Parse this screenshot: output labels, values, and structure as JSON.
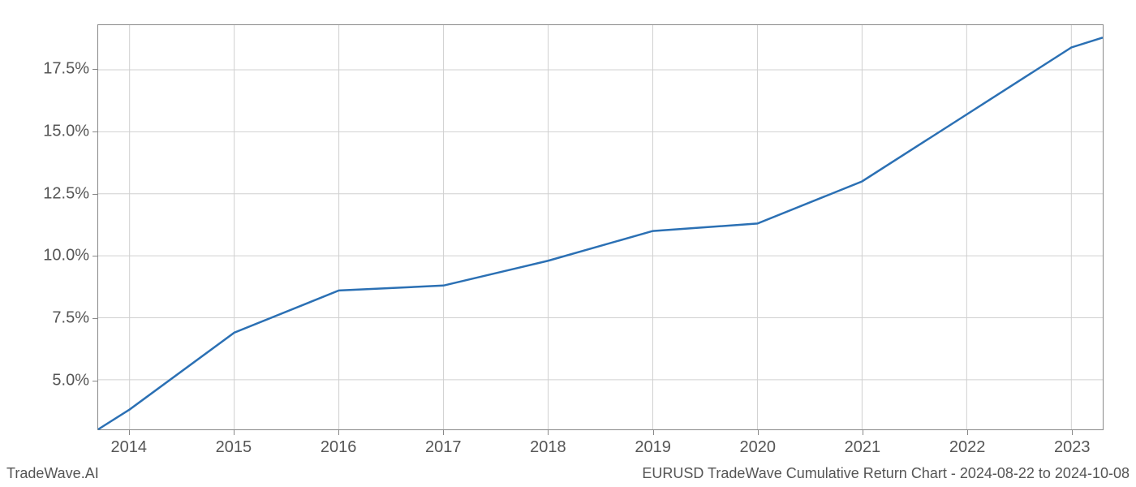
{
  "chart": {
    "type": "line",
    "x_values": [
      2013.7,
      2014,
      2015,
      2016,
      2017,
      2018,
      2019,
      2020,
      2021,
      2022,
      2023,
      2023.3
    ],
    "y_values": [
      3.0,
      3.8,
      6.9,
      8.6,
      8.8,
      9.8,
      11.0,
      11.3,
      13.0,
      15.7,
      18.4,
      18.8
    ],
    "x_ticks": [
      2014,
      2015,
      2016,
      2017,
      2018,
      2019,
      2020,
      2021,
      2022,
      2023
    ],
    "x_tick_labels": [
      "2014",
      "2015",
      "2016",
      "2017",
      "2018",
      "2019",
      "2020",
      "2021",
      "2022",
      "2023"
    ],
    "y_ticks": [
      5.0,
      7.5,
      10.0,
      12.5,
      15.0,
      17.5
    ],
    "y_tick_labels": [
      "5.0%",
      "7.5%",
      "10.0%",
      "12.5%",
      "15.0%",
      "17.5%"
    ],
    "xlim": [
      2013.7,
      2023.3
    ],
    "ylim": [
      3.0,
      19.3
    ],
    "line_color": "#2b70b4",
    "line_width": 2.5,
    "grid_color": "#d0d0d0",
    "border_color": "#888888",
    "background_color": "#ffffff",
    "tick_fontsize": 20,
    "tick_color": "#555555",
    "footer_fontsize": 18,
    "footer_color": "#555555"
  },
  "footer": {
    "left": "TradeWave.AI",
    "right": "EURUSD TradeWave Cumulative Return Chart - 2024-08-22 to 2024-10-08"
  }
}
